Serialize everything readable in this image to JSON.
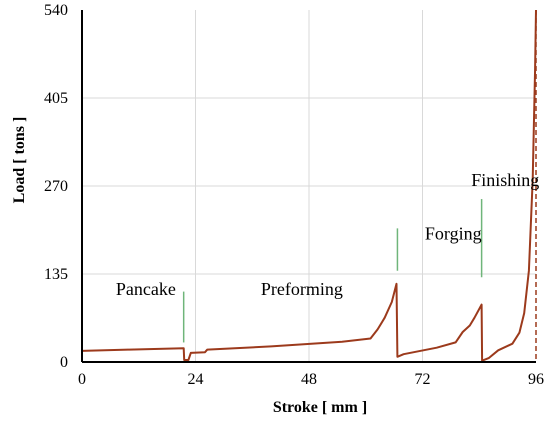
{
  "chart_data": {
    "type": "line",
    "xlabel": "Stroke [ mm ]",
    "ylabel": "Load [ tons ]",
    "xlim": [
      0,
      96
    ],
    "ylim": [
      0,
      540
    ],
    "x_ticks": [
      0,
      24,
      48,
      72,
      96
    ],
    "y_ticks": [
      0,
      135,
      270,
      405,
      540
    ],
    "x_tick_labels": [
      "0",
      "24",
      "48",
      "72",
      "96"
    ],
    "y_tick_labels": [
      "0",
      "135",
      "270",
      "405",
      "540"
    ],
    "grid": true,
    "colors": {
      "curve": "#9c3a1c",
      "marker": "#6fb57a",
      "grid": "#d9d9d9"
    },
    "series": [
      {
        "values_xy": [
          [
            0,
            17
          ],
          [
            10,
            19
          ],
          [
            21.5,
            21
          ],
          [
            21.6,
            3
          ],
          [
            22.5,
            3
          ],
          [
            23,
            14
          ],
          [
            26,
            15
          ],
          [
            26.5,
            19
          ],
          [
            40,
            24
          ],
          [
            55,
            31
          ],
          [
            61,
            36
          ],
          [
            62.5,
            50
          ],
          [
            64,
            68
          ],
          [
            65.5,
            92
          ],
          [
            66.5,
            120
          ],
          [
            66.7,
            8
          ],
          [
            68,
            12
          ],
          [
            75,
            22
          ],
          [
            79,
            30
          ],
          [
            80.5,
            46
          ],
          [
            82,
            56
          ],
          [
            83,
            68
          ],
          [
            84.5,
            88
          ],
          [
            84.6,
            2
          ],
          [
            86,
            6
          ],
          [
            88,
            18
          ],
          [
            91,
            28
          ],
          [
            92.5,
            45
          ],
          [
            93.5,
            75
          ],
          [
            94.5,
            140
          ],
          [
            95.3,
            280
          ],
          [
            95.8,
            450
          ],
          [
            96,
            540
          ]
        ]
      }
    ],
    "drop_line_x": 96,
    "annotations": [
      {
        "text": "Pancake",
        "x": 13.5,
        "y": 103
      },
      {
        "text": "Preforming",
        "x": 46.5,
        "y": 103
      },
      {
        "text": "Forging",
        "x": 78.5,
        "y": 188
      },
      {
        "text": "Finishing",
        "x": 89.5,
        "y": 270
      }
    ],
    "markers": [
      {
        "x": 21.5,
        "y0": 30,
        "y1": 108
      },
      {
        "x": 66.7,
        "y0": 140,
        "y1": 205
      },
      {
        "x": 84.5,
        "y0": 130,
        "y1": 250
      }
    ]
  }
}
